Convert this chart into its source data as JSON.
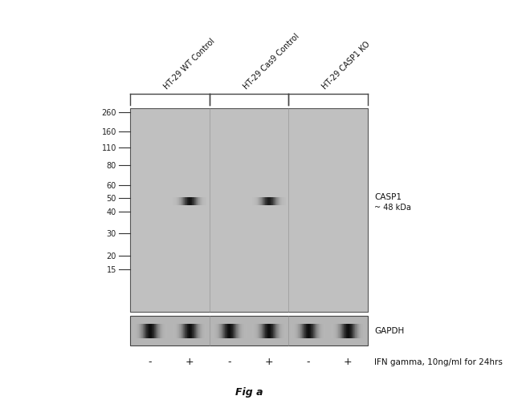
{
  "figure_width": 6.5,
  "figure_height": 5.1,
  "dpi": 100,
  "bg_color": "#ffffff",
  "gel_color": "#c0c0c0",
  "gapdh_color": "#b0b0b0",
  "lane_labels": [
    "HT-29 WT Control",
    "HT-29 Cas9 Control",
    "HT-29 CASP1 KO"
  ],
  "ifn_labels": [
    "-",
    "+",
    "-",
    "+",
    "-",
    "+"
  ],
  "mw_markers": [
    260,
    160,
    110,
    80,
    60,
    50,
    40,
    30,
    20,
    15
  ],
  "label_casp1": "CASP1",
  "label_casp1_kda": "~ 48 kDa",
  "label_gapdh": "GAPDH",
  "label_ifn": "IFN gamma, 10ng/ml for 24hrs",
  "label_fig": "Fig a"
}
